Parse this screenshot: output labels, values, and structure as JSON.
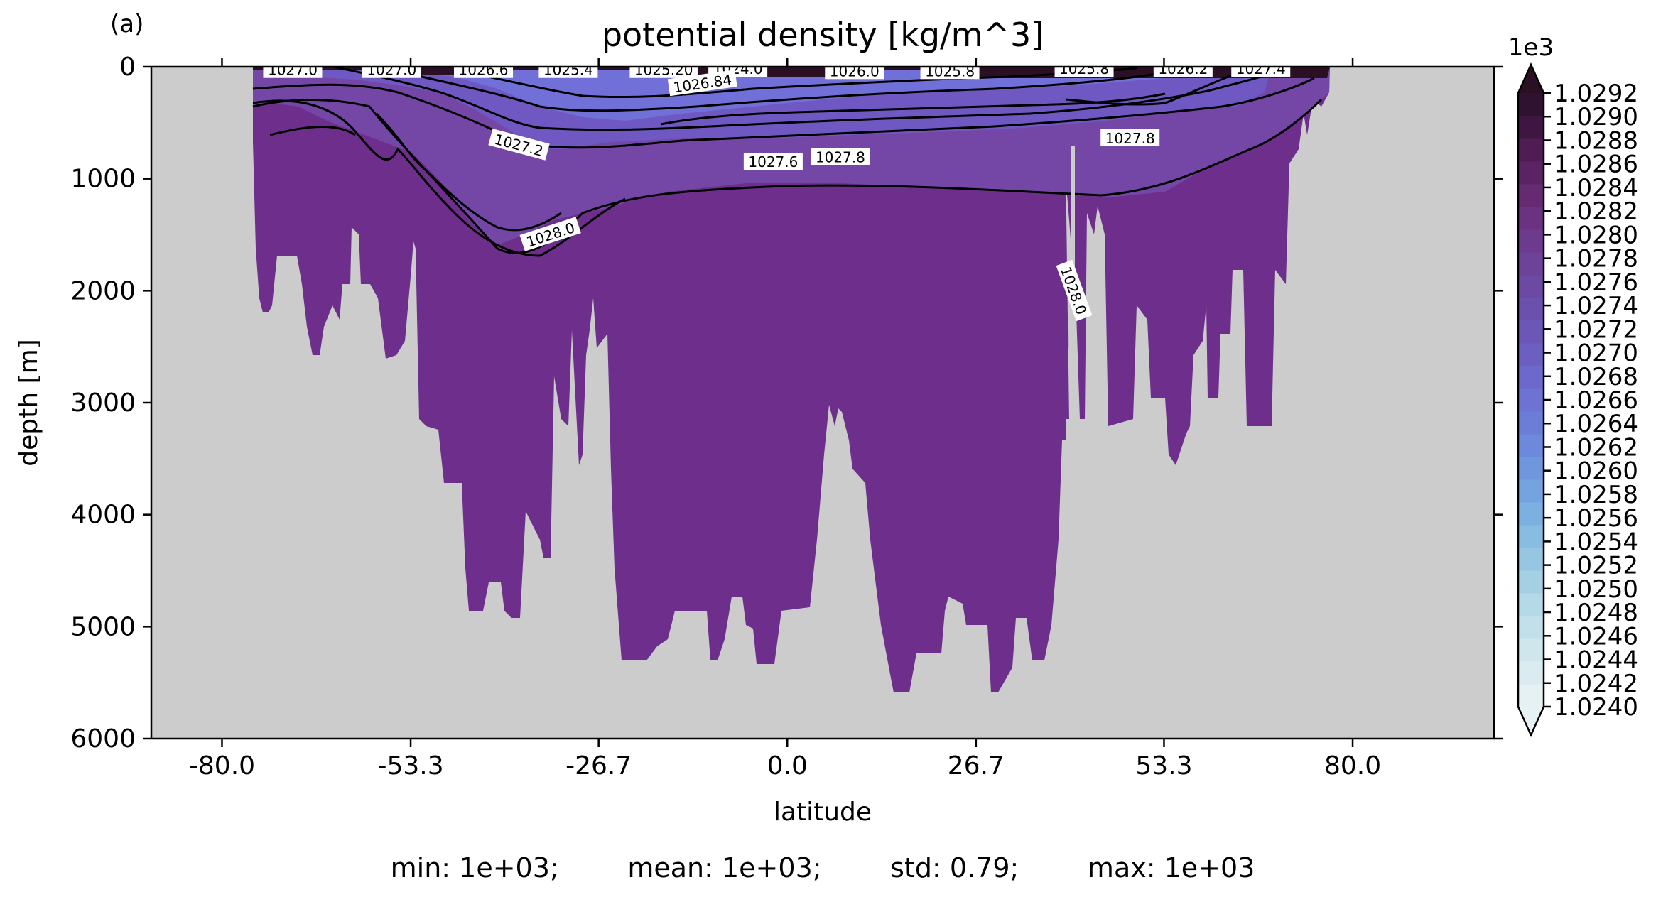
{
  "panel_label": "(a)",
  "stats_text": "min: 1e+03;        mean: 1e+03;        std: 0.79;        max: 1e+03",
  "chart_data": {
    "type": "heatmap",
    "title": "potential density [kg/m^3]",
    "xlabel": "latitude",
    "ylabel": "depth [m]",
    "xlim": [
      -90,
      100
    ],
    "ylim": [
      6000,
      0
    ],
    "x_ticks": [
      "-80.0",
      "-53.3",
      "-26.7",
      "0.0",
      "26.7",
      "53.3",
      "80.0"
    ],
    "x_tick_values": [
      -80.0,
      -53.3,
      -26.7,
      0.0,
      26.7,
      53.3,
      80.0
    ],
    "y_ticks": [
      "0",
      "1000",
      "2000",
      "3000",
      "4000",
      "5000",
      "6000"
    ],
    "y_tick_values": [
      0,
      1000,
      2000,
      3000,
      4000,
      5000,
      6000
    ],
    "land_color": "#cccccc",
    "deep_color": "#6e2f8c",
    "colorbar": {
      "multiplier_label": "1e3",
      "ticks": [
        "1.0240",
        "1.0242",
        "1.0244",
        "1.0246",
        "1.0248",
        "1.0250",
        "1.0252",
        "1.0254",
        "1.0256",
        "1.0258",
        "1.0260",
        "1.0262",
        "1.0264",
        "1.0266",
        "1.0268",
        "1.0270",
        "1.0272",
        "1.0274",
        "1.0276",
        "1.0278",
        "1.0280",
        "1.0282",
        "1.0284",
        "1.0286",
        "1.0288",
        "1.0290",
        "1.0292"
      ],
      "colors": [
        "#e6f1f3",
        "#dbecf0",
        "#cfe6ed",
        "#c2e0ea",
        "#b4d9e7",
        "#a5d0e4",
        "#96c6e2",
        "#88bce1",
        "#7cb0e1",
        "#75a3e0",
        "#7096de",
        "#6d89dc",
        "#6c7dd8",
        "#6d72d3",
        "#6d68cb",
        "#6d5fc1",
        "#6c57b7",
        "#6c50ad",
        "#6c49a3",
        "#6c4398",
        "#6c3b8d",
        "#6a3280",
        "#652a72",
        "#5b2363",
        "#4f1c54",
        "#3f1642",
        "#2f1230"
      ],
      "extend_top_color": "#2a1022",
      "extend_bottom_color": "#e6f1f3"
    },
    "contour_labels": [
      {
        "text": "1027.0",
        "lat": -70.0,
        "depth": 30
      },
      {
        "text": "1027.0",
        "lat": -56.0,
        "depth": 30
      },
      {
        "text": "1026.6",
        "lat": -43.0,
        "depth": 30
      },
      {
        "text": "1025.4",
        "lat": -31.0,
        "depth": 30
      },
      {
        "text": "1025.20",
        "lat": -17.5,
        "depth": 30
      },
      {
        "text": "1024.0",
        "lat": -7.0,
        "depth": 20
      },
      {
        "text": "1026.84",
        "lat": -12.0,
        "depth": 150
      },
      {
        "text": "1026.0",
        "lat": 9.5,
        "depth": 40
      },
      {
        "text": "1025.8",
        "lat": 23.0,
        "depth": 40
      },
      {
        "text": "1025.8",
        "lat": 42.0,
        "depth": 20
      },
      {
        "text": "1026.2",
        "lat": 56.0,
        "depth": 20
      },
      {
        "text": "1027.4",
        "lat": 67.0,
        "depth": 20
      },
      {
        "text": "1027.2",
        "lat": -38.0,
        "depth": 700
      },
      {
        "text": "1027.6",
        "lat": -2.0,
        "depth": 850
      },
      {
        "text": "1027.8",
        "lat": 7.5,
        "depth": 810
      },
      {
        "text": "1027.8",
        "lat": 48.5,
        "depth": 640
      },
      {
        "text": "1028.0",
        "lat": -33.5,
        "depth": 1500
      },
      {
        "text": "1028.0",
        "lat": 40.5,
        "depth": 2000
      }
    ]
  }
}
